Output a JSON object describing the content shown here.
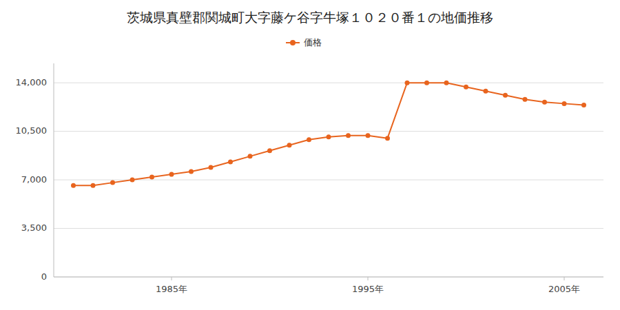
{
  "chart_data": {
    "type": "line",
    "title": "茨城県真壁郡関城町大字藤ケ谷字牛塚１０２０番１の地価推移",
    "x": [
      1980,
      1981,
      1982,
      1983,
      1984,
      1985,
      1986,
      1987,
      1988,
      1989,
      1990,
      1991,
      1992,
      1993,
      1994,
      1995,
      1996,
      1997,
      1998,
      1999,
      2000,
      2001,
      2002,
      2003,
      2004,
      2005,
      2006
    ],
    "series": [
      {
        "name": "価格",
        "color": "#e8641e",
        "marker": "circle",
        "values": [
          6600,
          6600,
          6800,
          7000,
          7200,
          7400,
          7600,
          7900,
          8300,
          8700,
          9100,
          9500,
          9900,
          10100,
          10200,
          10200,
          10000,
          14000,
          14000,
          14000,
          13700,
          13400,
          13100,
          12800,
          12600,
          12500,
          12400
        ]
      }
    ],
    "xlim": [
      1979,
      2007
    ],
    "xticks": [
      {
        "value": 1985,
        "label": "1985年"
      },
      {
        "value": 1995,
        "label": "1995年"
      },
      {
        "value": 2005,
        "label": "2005年"
      }
    ],
    "ylim": [
      0,
      15400
    ],
    "yticks": [
      0,
      {
        "value": 3500,
        "label": "3,500"
      },
      {
        "value": 7000,
        "label": "7,000"
      },
      {
        "value": 10500,
        "label": "10,500"
      },
      {
        "value": 14000,
        "label": "14,000"
      }
    ],
    "grid": true,
    "legend": "top"
  }
}
